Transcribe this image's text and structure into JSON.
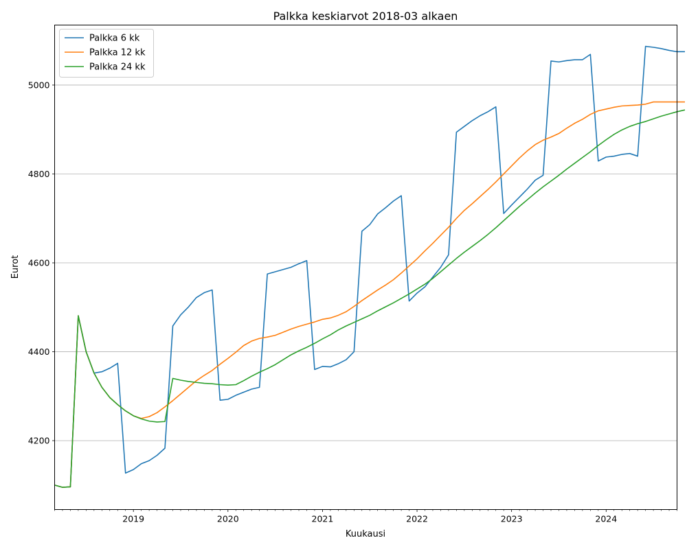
{
  "chart_data": {
    "type": "line",
    "title": "Palkka keskiarvot 2018-03 alkaen",
    "xlabel": "Kuukausi",
    "ylabel": "Eurot",
    "x_start": "2018-03",
    "x_end": "2024-10",
    "x_ticks": [
      "2019",
      "2020",
      "2021",
      "2022",
      "2023",
      "2024"
    ],
    "y_ticks": [
      4200,
      4400,
      4600,
      4800,
      5000
    ],
    "ylim": [
      4045,
      5135
    ],
    "grid": "horizontal",
    "legend_position": "top-left",
    "series": [
      {
        "name": "Palkka 6 kk",
        "color": "#1f77b4",
        "values": [
          4100,
          4095,
          4096,
          4481,
          4400,
          4352,
          4355,
          4363,
          4374,
          4127,
          4135,
          4148,
          4155,
          4167,
          4183,
          4458,
          4483,
          4501,
          4522,
          4533,
          4539,
          4291,
          4293,
          4302,
          4309,
          4316,
          4320,
          4575,
          4580,
          4585,
          4590,
          4598,
          4605,
          4360,
          4367,
          4366,
          4373,
          4382,
          4400,
          4671,
          4686,
          4710,
          4724,
          4739,
          4751,
          4514,
          4532,
          4546,
          4568,
          4590,
          4618,
          4894,
          4907,
          4920,
          4931,
          4940,
          4951,
          4711,
          4730,
          4748,
          4766,
          4786,
          4797,
          5054,
          5052,
          5055,
          5057,
          5057,
          5069,
          4829,
          4838,
          4840,
          4844,
          4846,
          4840,
          5087,
          5085,
          5082,
          5078,
          5075,
          5075
        ]
      },
      {
        "name": "Palkka 12 kk",
        "color": "#ff7f0e",
        "values": [
          4100,
          4095,
          4096,
          4481,
          4400,
          4352,
          4320,
          4297,
          4281,
          4267,
          4256,
          4250,
          4254,
          4263,
          4276,
          4290,
          4305,
          4320,
          4335,
          4347,
          4358,
          4372,
          4385,
          4399,
          4414,
          4424,
          4430,
          4433,
          4437,
          4444,
          4451,
          4457,
          4462,
          4467,
          4473,
          4476,
          4482,
          4490,
          4502,
          4515,
          4527,
          4539,
          4550,
          4562,
          4577,
          4593,
          4609,
          4627,
          4644,
          4662,
          4680,
          4700,
          4718,
          4733,
          4749,
          4765,
          4782,
          4800,
          4818,
          4836,
          4852,
          4866,
          4876,
          4883,
          4891,
          4903,
          4914,
          4923,
          4934,
          4942,
          4946,
          4950,
          4953,
          4954,
          4955,
          4957,
          4962,
          4962,
          4962,
          4962,
          4962
        ]
      },
      {
        "name": "Palkka 24 kk",
        "color": "#2ca02c",
        "values": [
          4100,
          4095,
          4096,
          4481,
          4400,
          4352,
          4320,
          4297,
          4281,
          4267,
          4256,
          4249,
          4244,
          4242,
          4243,
          4340,
          4336,
          4333,
          4331,
          4329,
          4328,
          4326,
          4325,
          4326,
          4335,
          4345,
          4354,
          4362,
          4371,
          4382,
          4393,
          4402,
          4410,
          4419,
          4429,
          4438,
          4449,
          4458,
          4466,
          4474,
          4482,
          4492,
          4501,
          4510,
          4520,
          4530,
          4541,
          4552,
          4565,
          4580,
          4595,
          4610,
          4624,
          4637,
          4650,
          4664,
          4679,
          4695,
          4711,
          4727,
          4742,
          4757,
          4771,
          4784,
          4797,
          4811,
          4824,
          4837,
          4850,
          4864,
          4877,
          4889,
          4899,
          4907,
          4913,
          4918,
          4924,
          4930,
          4935,
          4940,
          4944
        ]
      }
    ]
  }
}
